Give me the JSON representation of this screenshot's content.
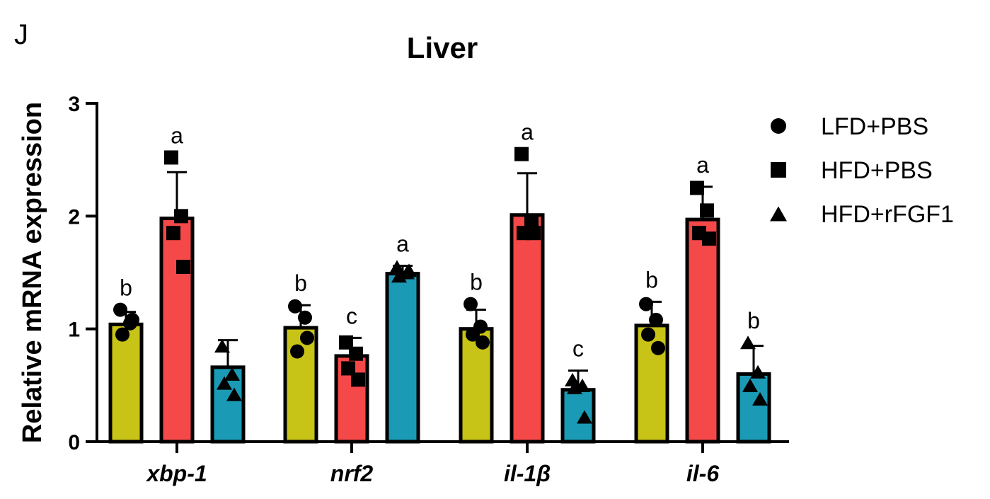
{
  "panel_letter": "J",
  "chart_data": {
    "type": "bar",
    "title": "Liver",
    "xlabel": "",
    "ylabel": "Relative mRNA expression",
    "ylim": [
      0,
      3
    ],
    "yticks": [
      "0",
      "1",
      "2",
      "3"
    ],
    "categories": [
      "xbp-1",
      "nrf2",
      "il-1β",
      "il-6"
    ],
    "legend_position": "right",
    "series": [
      {
        "name": "LFD+PBS",
        "marker": "circle",
        "color": "#C8C317",
        "values": [
          1.04,
          1.01,
          1.0,
          1.03
        ],
        "errors": [
          0.11,
          0.2,
          0.17,
          0.21
        ],
        "points": [
          [
            1.17,
            1.05,
            0.95,
            1.08
          ],
          [
            1.2,
            1.1,
            0.8,
            0.92
          ],
          [
            1.22,
            1.02,
            0.95,
            0.88
          ],
          [
            1.22,
            1.08,
            0.95,
            0.83
          ]
        ],
        "letters": [
          "b",
          "b",
          "b",
          "b"
        ]
      },
      {
        "name": "HFD+PBS",
        "marker": "square",
        "color": "#F54848",
        "values": [
          1.98,
          0.76,
          2.01,
          1.97
        ],
        "errors": [
          0.41,
          0.16,
          0.37,
          0.29
        ],
        "points": [
          [
            2.52,
            2.0,
            1.85,
            1.55
          ],
          [
            0.88,
            0.78,
            0.65,
            0.55
          ],
          [
            2.55,
            1.95,
            1.85,
            1.85
          ],
          [
            2.25,
            2.05,
            1.85,
            1.8
          ]
        ],
        "letters": [
          "a",
          "c",
          "a",
          "a"
        ]
      },
      {
        "name": "HFD+rFGF1",
        "marker": "triangle",
        "color": "#1A9AB5",
        "values": [
          0.66,
          1.49,
          0.46,
          0.6
        ],
        "errors": [
          0.24,
          0.07,
          0.17,
          0.25
        ],
        "points": [
          [
            0.85,
            0.6,
            0.52,
            0.42
          ],
          [
            1.55,
            1.5,
            1.47,
            1.52
          ],
          [
            0.55,
            0.5,
            0.48,
            0.22
          ],
          [
            0.88,
            0.62,
            0.5,
            0.38
          ]
        ],
        "letters": [
          "",
          "a",
          "c",
          "b"
        ]
      }
    ]
  }
}
